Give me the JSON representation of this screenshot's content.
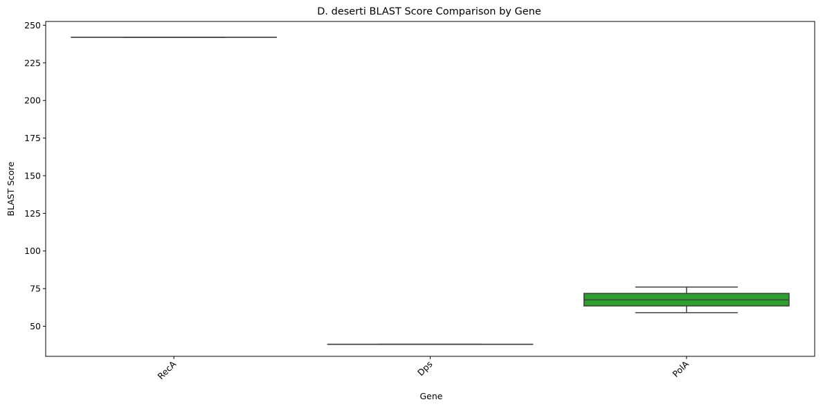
{
  "chart_data": {
    "type": "box",
    "title": "D. deserti BLAST Score Comparison by Gene",
    "xlabel": "Gene",
    "ylabel": "BLAST Score",
    "ylim": [
      30.0,
      252.5
    ],
    "yticks": [
      50,
      75,
      100,
      125,
      150,
      175,
      200,
      225,
      250
    ],
    "grid": false,
    "categories": [
      "RecA",
      "Dps",
      "PolA"
    ],
    "boxes": [
      {
        "category": "RecA",
        "min": 242.0,
        "q1": 242.0,
        "median": 242.0,
        "q3": 242.0,
        "max": 242.0,
        "color": "#1f77b4"
      },
      {
        "category": "Dps",
        "min": 38.0,
        "q1": 38.0,
        "median": 38.0,
        "q3": 38.0,
        "max": 38.0,
        "color": "#ff7f0e"
      },
      {
        "category": "PolA",
        "min": 59.0,
        "q1": 63.5,
        "median": 67.5,
        "q3": 71.8,
        "max": 76.0,
        "color": "#2ca02c"
      }
    ]
  }
}
